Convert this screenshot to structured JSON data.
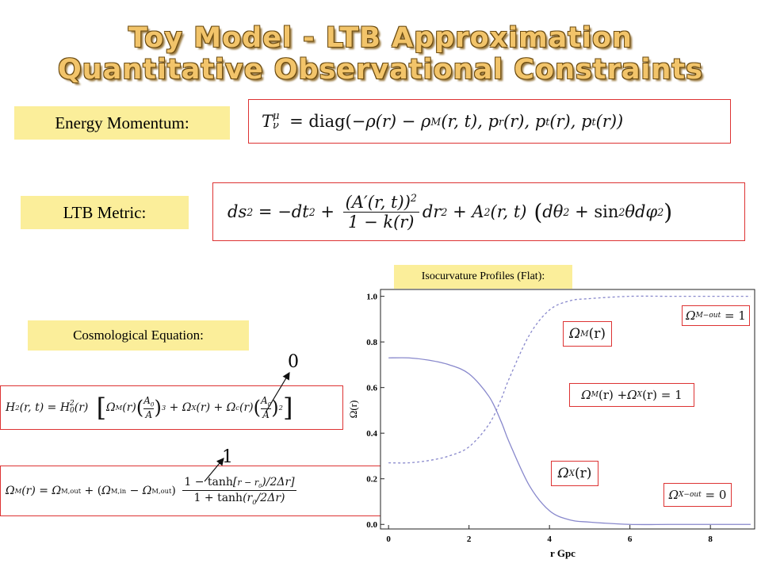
{
  "title": {
    "line1": "Toy Model - LTB Approximation",
    "line2": "Quantitative Observational Constraints"
  },
  "labels": {
    "energy_momentum": "Energy Momentum:",
    "ltb_metric": "LTB Metric:",
    "cosmological_equation": "Cosmological Equation:",
    "isocurvature": "Isocurvature Profiles (Flat):"
  },
  "equations": {
    "energy_momentum": "T^μ_ν = diag(−ρ(r) − ρ_M(r,t), p_r(r), p_t(r), p_t(r))",
    "ltb_metric": "ds² = −dt² + (A′(r,t))² / (1 − k(r)) dr² + A²(r,t)(dθ² + sin²θ dφ²)",
    "cosmological": "H²(r,t) = H₀²(r)[Ω_M(r)(A₀/A)³ + Ω_X(r) + Ω_c(r)(A₀/A)²]",
    "omega_profile": "Ω_M(r) = Ω_M,out + (Ω_M,in − Ω_M,out) (1 − tanh[(r − r₀)/2Δr]) / (1 + tanh(r₀/2Δr))"
  },
  "annotations": {
    "zero": "0",
    "one": "1",
    "omega_m": "Ω_M(r)",
    "omega_x": "Ω_X(r)",
    "omega_sum": "Ω_M(r) + Ω_X(r) = 1",
    "omega_m_out": "Ω_M−out = 1",
    "omega_x_out": "Ω_X−out = 0"
  },
  "chart_data": {
    "type": "line",
    "xlabel": "r Gpc",
    "ylabel": "Ω(r)",
    "xlim": [
      -0.2,
      9.1
    ],
    "ylim": [
      -0.02,
      1.03
    ],
    "xticks": [
      0,
      2,
      4,
      6,
      8
    ],
    "yticks": [
      0.0,
      0.2,
      0.4,
      0.6,
      0.8,
      1.0
    ],
    "ytick_labels": [
      "0.0",
      "0.2",
      "0.4",
      "0.6",
      "0.8",
      "1.0"
    ],
    "series": [
      {
        "style": "solid",
        "color": "#8888cc",
        "x": [
          0,
          0.5,
          1.0,
          1.5,
          2.0,
          2.5,
          2.8,
          3.0,
          3.5,
          4.0,
          4.5,
          5.0,
          6.0,
          7.0,
          8.0,
          9.0
        ],
        "y": [
          0.73,
          0.73,
          0.72,
          0.7,
          0.66,
          0.56,
          0.45,
          0.36,
          0.17,
          0.06,
          0.02,
          0.01,
          0.0,
          0.0,
          0.0,
          0.0
        ]
      },
      {
        "style": "dashed",
        "color": "#8888cc",
        "x": [
          0,
          0.5,
          1.0,
          1.5,
          2.0,
          2.5,
          2.8,
          3.0,
          3.5,
          4.0,
          4.5,
          5.0,
          6.0,
          7.0,
          8.0,
          9.0
        ],
        "y": [
          0.27,
          0.27,
          0.28,
          0.3,
          0.34,
          0.44,
          0.55,
          0.64,
          0.83,
          0.94,
          0.98,
          0.99,
          1.0,
          1.0,
          1.0,
          1.0
        ]
      }
    ]
  }
}
